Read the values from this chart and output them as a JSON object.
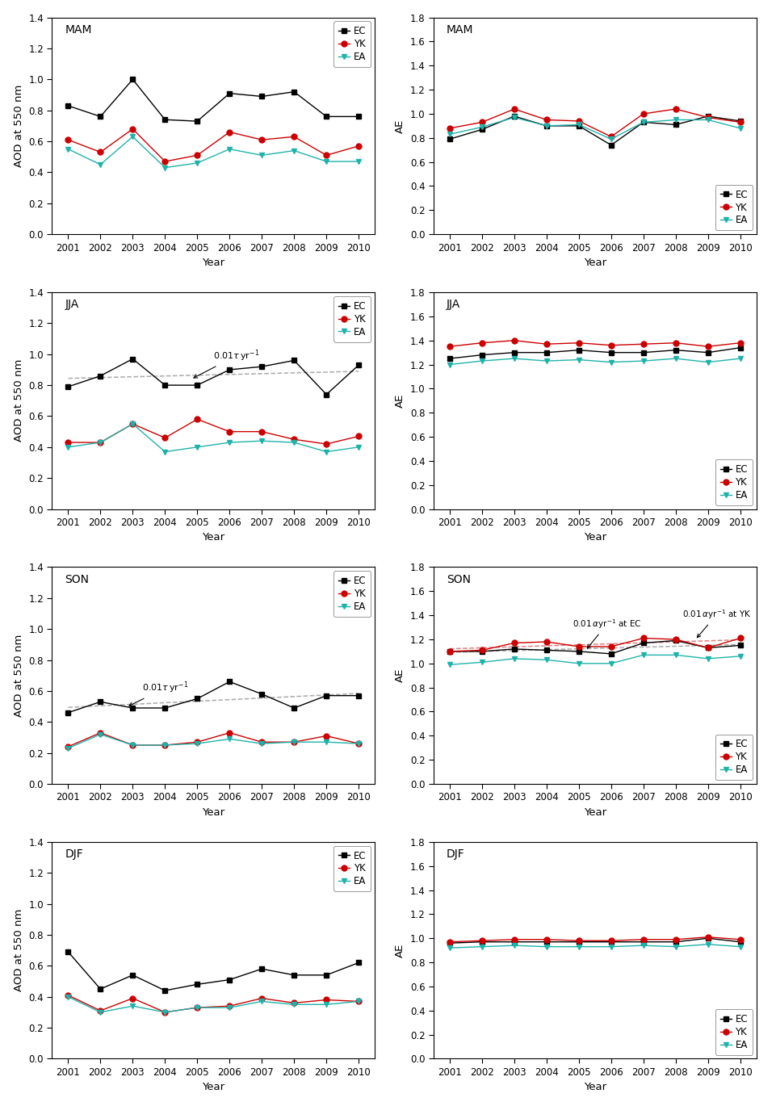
{
  "years": [
    2001,
    2002,
    2003,
    2004,
    2005,
    2006,
    2007,
    2008,
    2009,
    2010
  ],
  "MAM_AOD": {
    "EC": [
      0.83,
      0.76,
      1.0,
      0.74,
      0.73,
      0.91,
      0.89,
      0.92,
      0.76,
      0.76
    ],
    "YK": [
      0.61,
      0.53,
      0.68,
      0.47,
      0.51,
      0.66,
      0.61,
      0.63,
      0.51,
      0.57
    ],
    "EA": [
      0.55,
      0.45,
      0.63,
      0.43,
      0.46,
      0.55,
      0.51,
      0.54,
      0.47,
      0.47
    ]
  },
  "MAM_AE": {
    "EC": [
      0.79,
      0.87,
      0.98,
      0.9,
      0.9,
      0.74,
      0.93,
      0.91,
      0.98,
      0.94
    ],
    "YK": [
      0.88,
      0.93,
      1.04,
      0.95,
      0.94,
      0.81,
      1.0,
      1.04,
      0.97,
      0.93
    ],
    "EA": [
      0.83,
      0.89,
      0.97,
      0.9,
      0.91,
      0.79,
      0.93,
      0.95,
      0.95,
      0.88
    ]
  },
  "JJA_AOD": {
    "EC": [
      0.79,
      0.86,
      0.97,
      0.8,
      0.8,
      0.9,
      0.92,
      0.96,
      0.74,
      0.93
    ],
    "YK": [
      0.43,
      0.43,
      0.55,
      0.46,
      0.58,
      0.5,
      0.5,
      0.45,
      0.42,
      0.47
    ],
    "EA": [
      0.4,
      0.43,
      0.55,
      0.37,
      0.4,
      0.43,
      0.44,
      0.43,
      0.37,
      0.4
    ]
  },
  "JJA_AE": {
    "EC": [
      1.25,
      1.28,
      1.3,
      1.3,
      1.32,
      1.3,
      1.3,
      1.32,
      1.3,
      1.34
    ],
    "YK": [
      1.35,
      1.38,
      1.4,
      1.37,
      1.38,
      1.36,
      1.37,
      1.38,
      1.35,
      1.38
    ],
    "EA": [
      1.2,
      1.23,
      1.25,
      1.23,
      1.24,
      1.22,
      1.23,
      1.25,
      1.22,
      1.25
    ]
  },
  "SON_AOD": {
    "EC": [
      0.46,
      0.53,
      0.49,
      0.49,
      0.55,
      0.66,
      0.58,
      0.49,
      0.57,
      0.57
    ],
    "YK": [
      0.24,
      0.33,
      0.25,
      0.25,
      0.27,
      0.33,
      0.27,
      0.27,
      0.31,
      0.26
    ],
    "EA": [
      0.23,
      0.32,
      0.25,
      0.25,
      0.26,
      0.29,
      0.26,
      0.27,
      0.27,
      0.26
    ]
  },
  "SON_AE": {
    "EC": [
      1.1,
      1.1,
      1.12,
      1.11,
      1.1,
      1.08,
      1.17,
      1.19,
      1.13,
      1.15
    ],
    "YK": [
      1.1,
      1.11,
      1.17,
      1.18,
      1.14,
      1.14,
      1.21,
      1.2,
      1.13,
      1.21
    ],
    "EA": [
      0.99,
      1.01,
      1.04,
      1.03,
      1.0,
      1.0,
      1.07,
      1.07,
      1.04,
      1.06
    ]
  },
  "DJF_AOD": {
    "EC": [
      0.69,
      0.45,
      0.54,
      0.44,
      0.48,
      0.51,
      0.58,
      0.54,
      0.54,
      0.62
    ],
    "YK": [
      0.41,
      0.31,
      0.39,
      0.3,
      0.33,
      0.34,
      0.39,
      0.36,
      0.38,
      0.37
    ],
    "EA": [
      0.4,
      0.3,
      0.34,
      0.3,
      0.33,
      0.33,
      0.37,
      0.35,
      0.35,
      0.37
    ]
  },
  "DJF_AE": {
    "EC": [
      0.96,
      0.97,
      0.97,
      0.97,
      0.97,
      0.97,
      0.97,
      0.97,
      1.0,
      0.97
    ],
    "YK": [
      0.97,
      0.98,
      0.99,
      0.99,
      0.98,
      0.98,
      0.99,
      0.99,
      1.01,
      0.99
    ],
    "EA": [
      0.92,
      0.93,
      0.94,
      0.93,
      0.93,
      0.93,
      0.94,
      0.93,
      0.95,
      0.93
    ]
  },
  "EC_color": "#000000",
  "YK_color": "#cc0000",
  "EA_color": "#20b2aa",
  "EC_marker": "s",
  "YK_marker": "o",
  "EA_marker": "v",
  "line_color_EC": "#888888",
  "line_color_YK": "#cc8888"
}
